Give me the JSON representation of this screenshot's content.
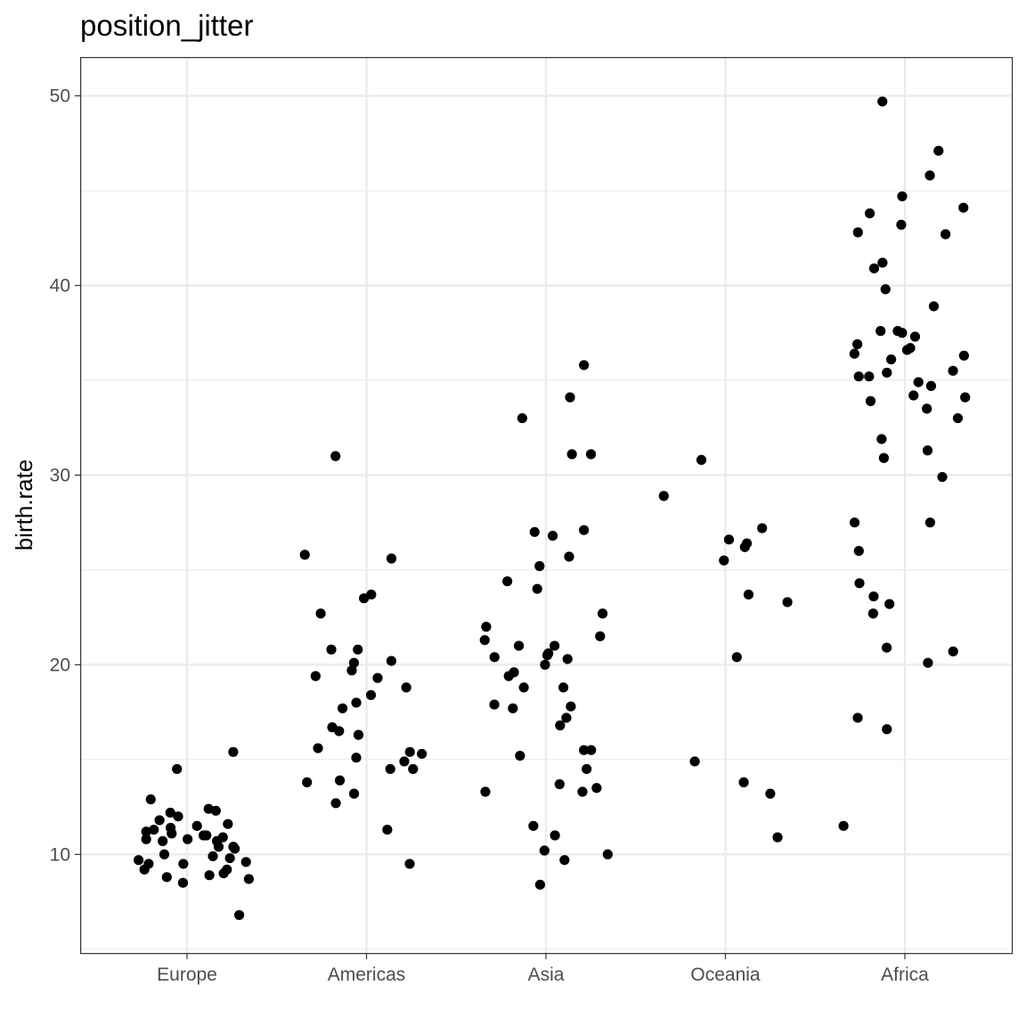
{
  "chart_data": {
    "type": "scatter",
    "title": "position_jitter",
    "xlabel": "",
    "ylabel": "birth.rate",
    "categories": [
      "Europe",
      "Americas",
      "Asia",
      "Oceania",
      "Africa"
    ],
    "ylim": [
      4.8,
      52
    ],
    "y_ticks": [
      "10",
      "20",
      "30",
      "40",
      "50"
    ],
    "grid": true,
    "theme": "bw",
    "point_color": "#000000",
    "series": [
      {
        "category": "Europe",
        "values": [
          11.0,
          10.7,
          11.0,
          8.7,
          8.9,
          12.4,
          11.2,
          10.3,
          9.9,
          11.6,
          10.7,
          8.8,
          9.0,
          9.5,
          11.5,
          11.3,
          12.9,
          10.9,
          10.4,
          9.8,
          9.7,
          9.5,
          12.3,
          12.2,
          11.8,
          11.4,
          6.8,
          15.4,
          14.5,
          12.0,
          9.2,
          10.8,
          9.2,
          10.0,
          11.1,
          10.8,
          9.6,
          8.5,
          10.4
        ]
      },
      {
        "category": "Americas",
        "values": [
          16.7,
          16.3,
          14.5,
          18.8,
          17.7,
          18.4,
          9.5,
          25.6,
          15.6,
          19.3,
          19.4,
          14.5,
          20.1,
          20.2,
          12.7,
          19.7,
          13.2,
          18.0,
          15.3,
          20.8,
          13.8,
          31.0,
          22.7,
          11.3,
          25.8,
          13.9,
          16.5,
          15.1,
          20.8,
          14.9,
          23.5,
          23.7,
          15.4
        ]
      },
      {
        "category": "Asia",
        "values": [
          16.8,
          17.8,
          22.0,
          26.8,
          25.2,
          20.5,
          17.2,
          15.2,
          10.2,
          22.7,
          19.4,
          20.6,
          13.5,
          13.7,
          13.3,
          18.8,
          9.7,
          11.5,
          27.1,
          25.7,
          21.0,
          13.3,
          10.0,
          20.0,
          24.4,
          21.0,
          20.3,
          15.5,
          11.0,
          34.1,
          17.9,
          21.5,
          20.4,
          19.6,
          8.4,
          15.5,
          33.0,
          31.1,
          17.7,
          35.8,
          27.0,
          24.0,
          21.3,
          18.8,
          31.1,
          14.5
        ]
      },
      {
        "category": "Oceania",
        "values": [
          27.2,
          23.3,
          20.4,
          13.2,
          30.8,
          28.9,
          14.9,
          26.6,
          13.8,
          23.7,
          26.4,
          25.5,
          26.2,
          10.9
        ]
      },
      {
        "category": "Africa",
        "values": [
          31.3,
          35.2,
          34.2,
          35.2,
          33.5,
          37.6,
          41.2,
          20.1,
          16.6,
          23.2,
          22.7,
          30.9,
          36.9,
          36.7,
          44.1,
          45.8,
          36.6,
          42.7,
          29.9,
          49.7,
          37.5,
          44.7,
          24.3,
          20.7,
          39.8,
          11.5,
          34.9,
          36.1,
          27.5,
          26.0,
          17.2,
          42.8,
          47.1,
          34.7,
          27.5,
          20.9,
          43.8,
          43.2,
          33.0,
          31.9,
          36.4,
          35.5,
          35.4,
          34.1,
          33.9,
          23.6,
          37.3,
          36.3,
          40.9,
          38.9,
          37.6
        ]
      }
    ]
  }
}
